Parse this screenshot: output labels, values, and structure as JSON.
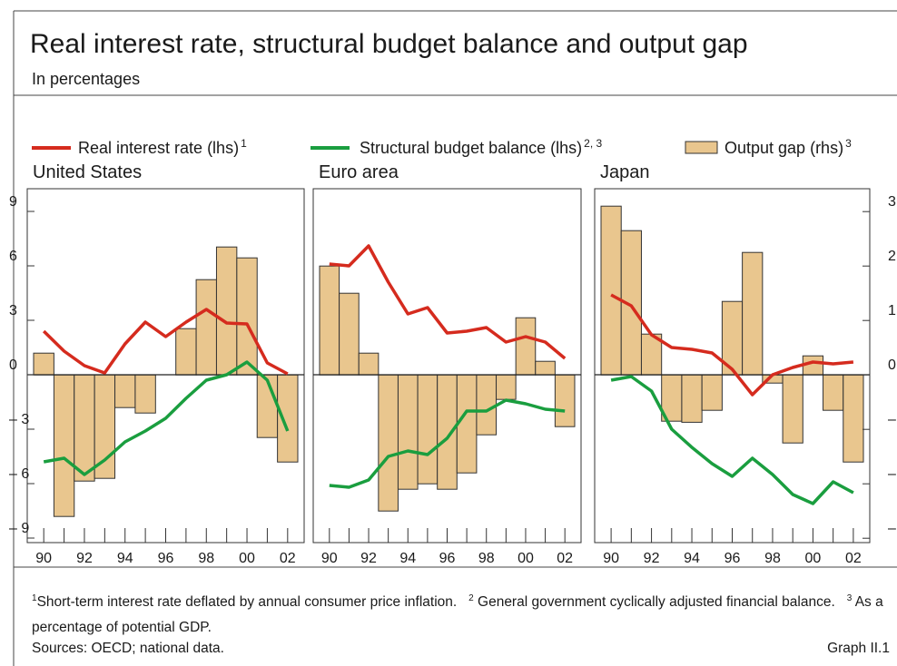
{
  "title": "Real interest rate, structural budget balance and output gap",
  "subtitle": "In percentages",
  "legend": [
    {
      "name": "Real interest rate (lhs)",
      "note": "1",
      "color": "#d52b1e"
    },
    {
      "name": "Structural budget balance (lhs)",
      "note": "2, 3",
      "color": "#1a9e3f"
    },
    {
      "name": "Output gap (rhs)",
      "note": "3",
      "color": "#e9c68e"
    }
  ],
  "chart_data": [
    {
      "type": "bar",
      "title": "United States",
      "categories": [
        "90",
        null,
        "92",
        null,
        "94",
        null,
        "96",
        null,
        "98",
        null,
        "00",
        null,
        "02"
      ],
      "ylim": [
        -9.25,
        10.25
      ],
      "yticks": [
        {
          "value": 9,
          "label": "9"
        },
        6,
        3,
        0,
        {
          "value": -3,
          "label": "– 3"
        },
        {
          "value": -6,
          "label": "– 6"
        },
        {
          "value": -9,
          "label": "– 9"
        }
      ],
      "y2lim": [
        -3.08,
        3.42
      ],
      "series": [
        {
          "values": [
            2.4,
            1.3,
            0.5,
            0.1,
            1.7,
            2.9,
            2.1,
            2.9,
            3.6,
            2.85,
            2.8,
            0.65,
            0.05
          ]
        },
        {
          "values": [
            -4.8,
            -4.6,
            -5.5,
            -4.7,
            -3.7,
            -3.1,
            -2.4,
            -1.3,
            -0.3,
            0.0,
            0.7,
            -0.3,
            -3.1
          ]
        },
        {
          "axis": "y2",
          "values": [
            0.4,
            -2.6,
            -1.95,
            -1.9,
            -0.6,
            -0.7,
            0.0,
            0.85,
            1.75,
            2.35,
            2.15,
            -1.15,
            -1.6
          ]
        }
      ]
    },
    {
      "type": "bar",
      "title": "Euro area",
      "categories": [
        "90",
        null,
        "92",
        null,
        "94",
        null,
        "96",
        null,
        "98",
        null,
        "00",
        null,
        "02"
      ],
      "ylim": [
        -9.25,
        10.25
      ],
      "y2lim": [
        -3.08,
        3.42
      ],
      "series": [
        {
          "values": [
            6.1,
            6.0,
            7.1,
            5.1,
            3.35,
            3.7,
            2.3,
            2.4,
            2.6,
            1.8,
            2.1,
            1.8,
            0.9
          ]
        },
        {
          "values": [
            -6.1,
            -6.2,
            -5.8,
            -4.5,
            -4.2,
            -4.4,
            -3.5,
            -2.0,
            -2.0,
            -1.4,
            -1.6,
            -1.9,
            -2.0
          ]
        },
        {
          "axis": "y2",
          "values": [
            2.0,
            1.5,
            0.4,
            -2.5,
            -2.1,
            -2.0,
            -2.1,
            -1.8,
            -1.1,
            -0.45,
            1.05,
            0.25,
            -0.95
          ]
        }
      ]
    },
    {
      "type": "bar",
      "title": "Japan",
      "categories": [
        "90",
        null,
        "92",
        null,
        "94",
        null,
        "96",
        null,
        "98",
        null,
        "00",
        null,
        "02"
      ],
      "ylim": [
        -9.25,
        10.25
      ],
      "y2lim": [
        -3.08,
        3.42
      ],
      "y2ticks": [
        3,
        2,
        1,
        0,
        {
          "value": -1,
          "label": "– 1"
        },
        {
          "value": -2,
          "label": "– 2"
        },
        {
          "value": -3,
          "label": "– 3"
        }
      ],
      "series": [
        {
          "values": [
            4.4,
            3.8,
            2.2,
            1.5,
            1.4,
            1.2,
            0.3,
            -1.1,
            0.0,
            0.4,
            0.7,
            0.6,
            0.7
          ]
        },
        {
          "values": [
            -0.3,
            -0.1,
            -0.9,
            -3.0,
            -4.0,
            -4.9,
            -5.6,
            -4.6,
            -5.5,
            -6.6,
            -7.1,
            -5.9,
            -6.5
          ]
        },
        {
          "axis": "y2",
          "values": [
            3.1,
            2.65,
            0.75,
            -0.85,
            -0.87,
            -0.65,
            1.35,
            2.25,
            -0.15,
            -1.25,
            0.35,
            -0.65,
            -1.6
          ]
        }
      ]
    }
  ],
  "footnotes": [
    {
      "mark": "1",
      "text": "Short-term interest rate deflated by annual consumer price inflation."
    },
    {
      "mark": "2",
      "text": "General government cyclically adjusted financial balance."
    },
    {
      "mark": "3",
      "text": "As a percentage of potential GDP."
    }
  ],
  "sources": "Sources: OECD; national data.",
  "graph_id": "Graph II.1"
}
